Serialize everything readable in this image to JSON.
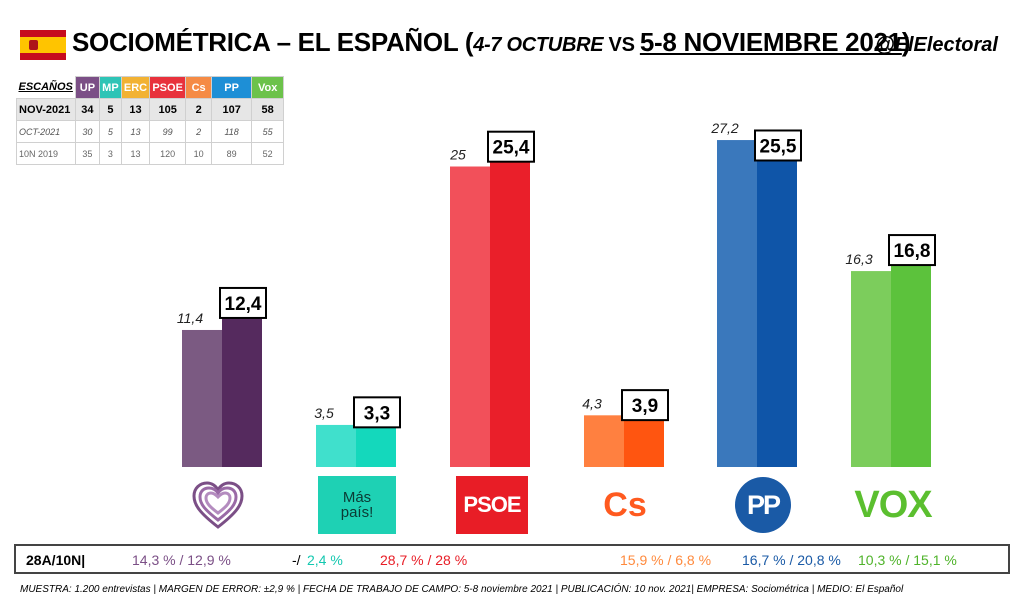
{
  "header": {
    "title_main": "SOCIOMÉTRICA – EL ESPAÑOL (",
    "title_old": "4-7 OCTUBRE",
    "title_vs": " VS ",
    "title_new": "5-8 NOVIEMBRE 2021",
    "title_close": ")",
    "handle": "@ElElectoral"
  },
  "seats_table": {
    "label": "ESCAÑOS",
    "columns": [
      {
        "name": "UP",
        "color": "#7b4f86"
      },
      {
        "name": "MP",
        "color": "#2ec4b6"
      },
      {
        "name": "ERC",
        "color": "#f2b233"
      },
      {
        "name": "PSOE",
        "color": "#e8323c"
      },
      {
        "name": "Cs",
        "color": "#f58b45"
      },
      {
        "name": "PP",
        "color": "#1e8fd6"
      },
      {
        "name": "Vox",
        "color": "#6cc24a"
      }
    ],
    "rows": [
      {
        "label": "NOV-2021",
        "values": [
          "34",
          "5",
          "13",
          "105",
          "2",
          "107",
          "58"
        ]
      },
      {
        "label": "OCT-2021",
        "values": [
          "30",
          "5",
          "13",
          "99",
          "2",
          "118",
          "55"
        ]
      },
      {
        "label": "10N 2019",
        "values": [
          "35",
          "3",
          "13",
          "120",
          "10",
          "89",
          "52"
        ]
      }
    ]
  },
  "chart_data": {
    "type": "bar",
    "categories": [
      "UP",
      "MP",
      "PSOE",
      "Cs",
      "PP",
      "Vox"
    ],
    "series": [
      {
        "values": [
          11.4,
          3.5,
          25,
          4.3,
          27.2,
          16.3
        ]
      },
      {
        "values": [
          12.4,
          3.3,
          25.4,
          3.9,
          25.5,
          16.8
        ]
      }
    ],
    "labels_old": [
      "11,4",
      "3,5",
      "25",
      "4,3",
      "27,2",
      "16,3"
    ],
    "labels_new": [
      "12,4",
      "3,3",
      "25,4",
      "3,9",
      "25,5",
      "16,8"
    ],
    "colors_old": [
      "#7b5a82",
      "#40e0cc",
      "#f2505a",
      "#ff8040",
      "#3a78bc",
      "#7ccd5c"
    ],
    "colors_new": [
      "#552a5e",
      "#14d8bc",
      "#ea1f2a",
      "#ff5510",
      "#0f55a8",
      "#5cc23c"
    ],
    "ylim": [
      0,
      30
    ],
    "grid": false
  },
  "logos": {
    "mp_line1": "Más",
    "mp_line2": "país!",
    "psoe": "PSOE",
    "cs": "Cs",
    "pp": "PP",
    "vox": "VOX"
  },
  "results_bar": {
    "label": "28A/10N|",
    "up": "14,3 % / 12,9 %",
    "mp_dash": "-/",
    "mp": "2,4 %",
    "psoe": "28,7  % / 28 %",
    "cs": "15,9 % / 6,8 %",
    "pp": "16,7 % / 20,8 %",
    "vox": "10,3 % / 15,1 %"
  },
  "footer": "MUESTRA: 1.200 entrevistas | MARGEN DE ERROR: ±2,9 % | FECHA DE TRABAJO DE CAMPO: 5-8 noviembre 2021 | PUBLICACIÓN: 10 nov. 2021| EMPRESA: Sociométrica | MEDIO: El Español"
}
